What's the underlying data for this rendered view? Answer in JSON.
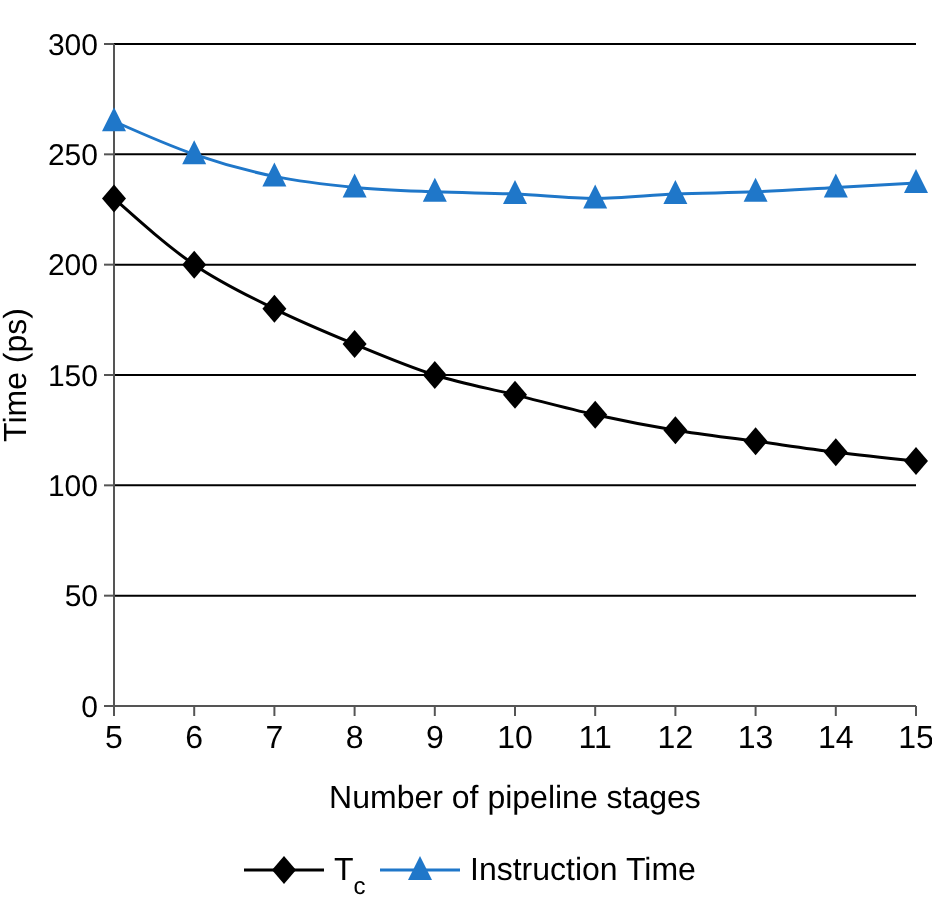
{
  "chart_data": {
    "type": "line",
    "xlabel": "Number of pipeline stages",
    "ylabel": "Time (ps)",
    "x": [
      5,
      6,
      7,
      8,
      9,
      10,
      11,
      12,
      13,
      14,
      15
    ],
    "series": [
      {
        "name": "T$_{c}$",
        "color": "#000000",
        "marker": "diamond",
        "values": [
          230,
          200,
          180,
          164,
          150,
          141,
          132,
          125,
          120,
          115,
          111
        ]
      },
      {
        "name": "Instruction Time",
        "color": "#1f77c9",
        "marker": "triangle",
        "values": [
          265,
          250,
          240,
          235,
          233,
          232,
          230,
          232,
          233,
          235,
          237
        ]
      }
    ],
    "xlim": [
      5,
      15
    ],
    "xticks": [
      5,
      6,
      7,
      8,
      9,
      10,
      11,
      12,
      13,
      14,
      15
    ],
    "ylim": [
      0,
      300
    ],
    "yticks": [
      0,
      50,
      100,
      150,
      200,
      250,
      300
    ],
    "grid": "y",
    "legend": "bottom",
    "line_style": "solid"
  }
}
